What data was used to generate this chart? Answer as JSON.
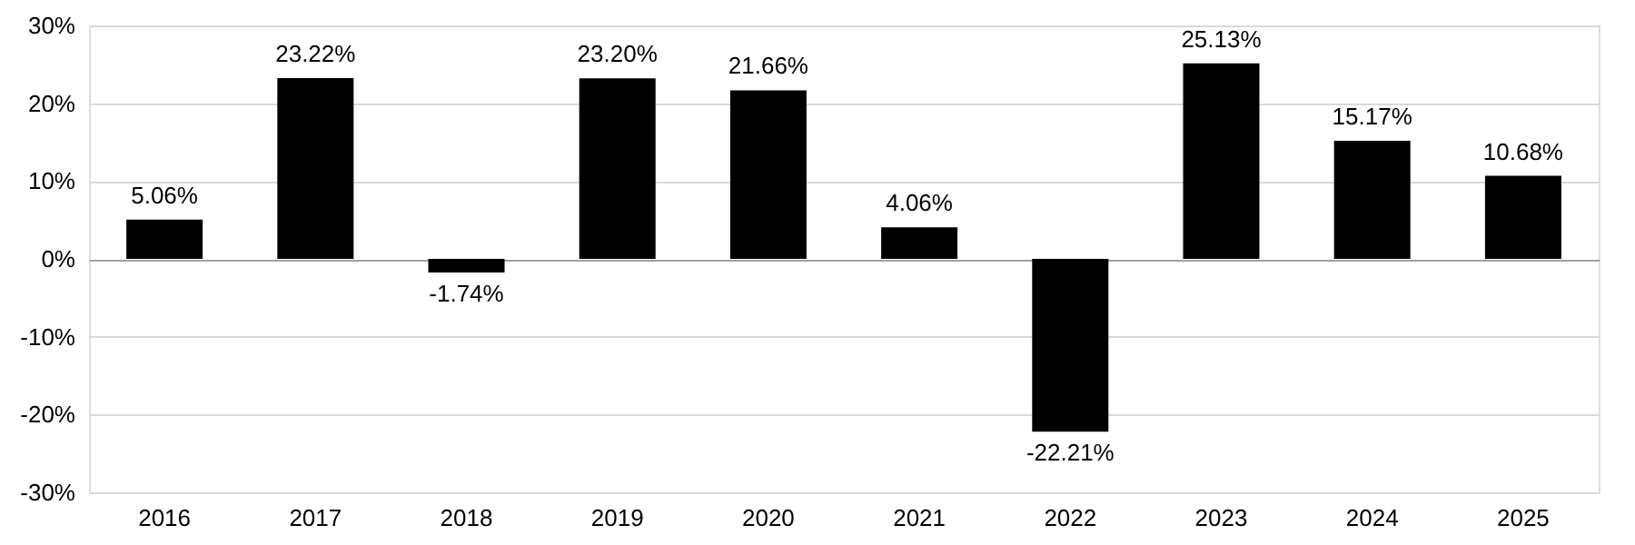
{
  "chart_data": {
    "type": "bar",
    "categories": [
      "2016",
      "2017",
      "2018",
      "2019",
      "2020",
      "2021",
      "2022",
      "2023",
      "2024",
      "2025"
    ],
    "values": [
      5.06,
      23.22,
      -1.74,
      23.2,
      21.66,
      4.06,
      -22.21,
      25.13,
      15.17,
      10.68
    ],
    "value_labels": [
      "5.06%",
      "23.22%",
      "-1.74%",
      "23.20%",
      "21.66%",
      "4.06%",
      "-22.21%",
      "25.13%",
      "15.17%",
      "10.68%"
    ],
    "color": "#000000",
    "ylim": [
      -30,
      30
    ],
    "yticks": [
      {
        "value": -30,
        "label": "-30%"
      },
      {
        "value": -20,
        "label": "-20%"
      },
      {
        "value": -10,
        "label": "-10%"
      },
      {
        "value": 0,
        "label": "0%"
      },
      {
        "value": 10,
        "label": "10%"
      },
      {
        "value": 20,
        "label": "20%"
      },
      {
        "value": 30,
        "label": "30%"
      }
    ],
    "grid": "y"
  }
}
